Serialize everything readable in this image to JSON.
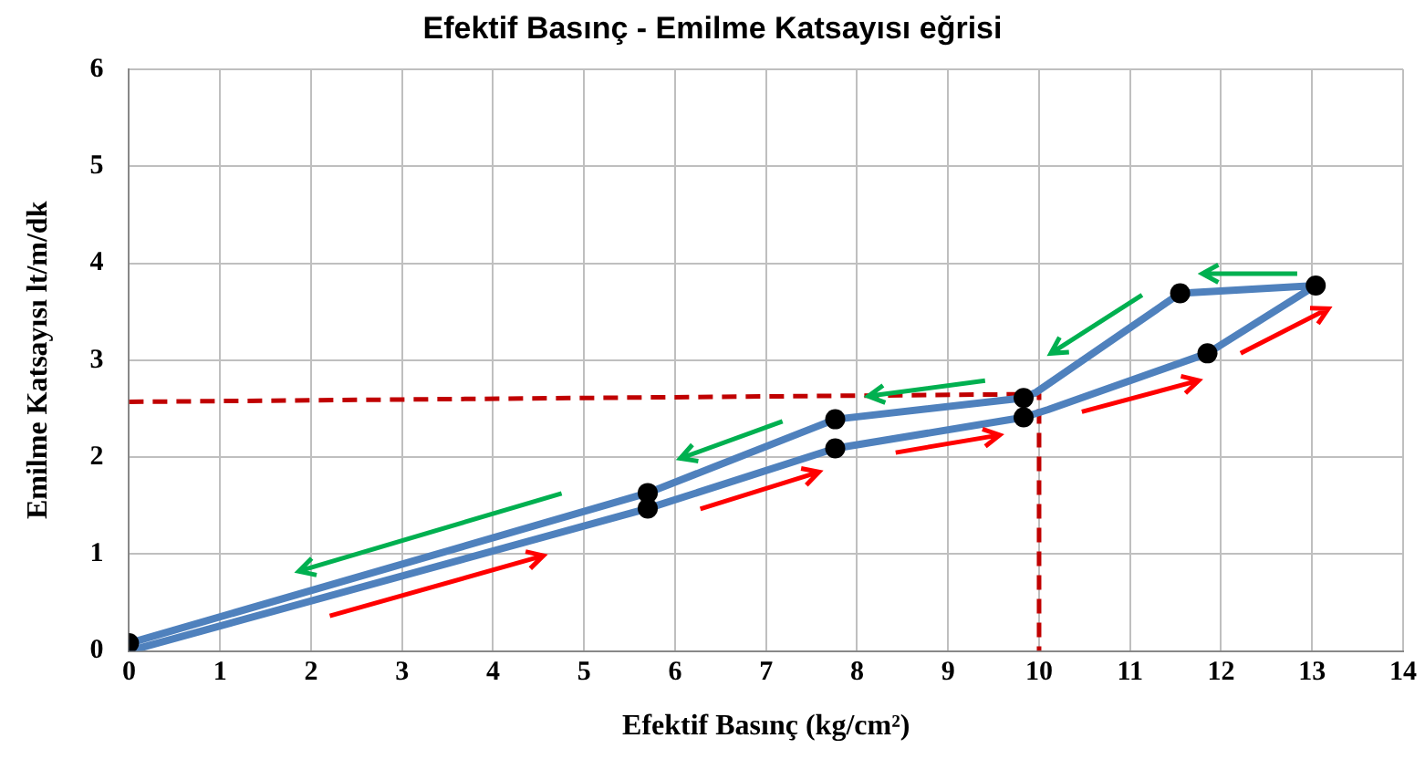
{
  "chart_data": {
    "type": "line",
    "title": "Efektif Basınç - Emilme Katsayısı eğrisi",
    "xlabel": "Efektif Basınç (kg/cm²)",
    "ylabel": "Emilme Katsayısı lt/m/dk",
    "xlim": [
      0,
      14
    ],
    "xticks": [
      0,
      1,
      2,
      3,
      4,
      5,
      6,
      7,
      8,
      9,
      10,
      11,
      12,
      13,
      14
    ],
    "ylim": [
      0,
      6
    ],
    "yticks": [
      0,
      1,
      2,
      3,
      4,
      5,
      6
    ],
    "grid": true,
    "legend": false,
    "series": [
      {
        "type": "line",
        "color": "#4f81bd",
        "marker": "none",
        "line_style": "solid",
        "x": [
          0,
          5.7,
          7.76,
          9.83,
          10.1,
          11.85,
          13.04,
          11.55,
          9.97,
          9.83,
          7.76,
          5.7,
          0
        ],
        "values": [
          0,
          1.47,
          2.09,
          2.41,
          2.49,
          3.07,
          3.77,
          3.69,
          2.67,
          2.61,
          2.39,
          1.63,
          0.08
        ]
      },
      {
        "type": "scatter",
        "color": "#000000",
        "marker": "circle",
        "x": [
          0,
          5.7,
          7.76,
          9.83,
          11.85,
          13.04,
          11.55,
          9.83,
          7.76,
          5.7
        ],
        "values": [
          0.08,
          1.47,
          2.09,
          2.41,
          3.07,
          3.77,
          3.69,
          2.61,
          2.39,
          1.63
        ]
      },
      {
        "type": "line",
        "color": "#c00000",
        "marker": "none",
        "line_style": "dashed",
        "x": [
          0,
          10,
          10
        ],
        "values": [
          2.57,
          2.65,
          0
        ]
      }
    ]
  }
}
